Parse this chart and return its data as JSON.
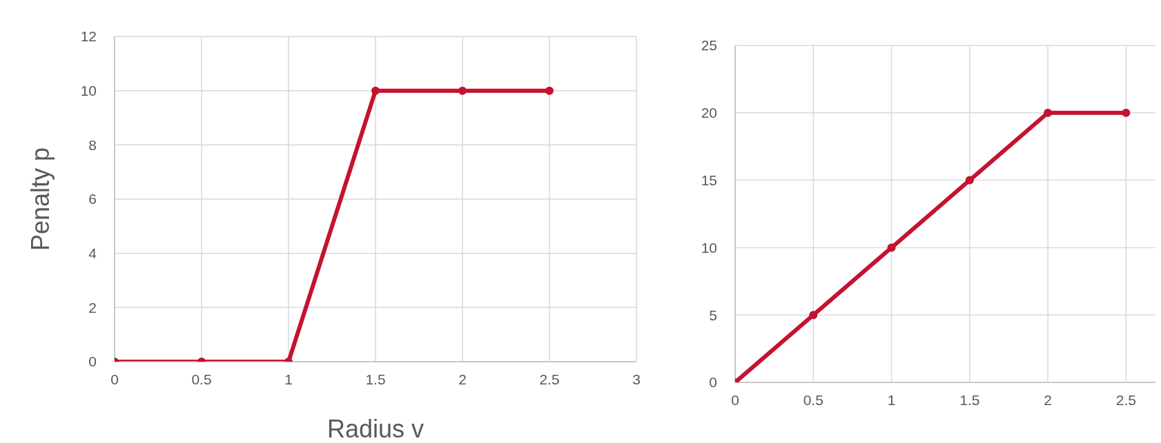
{
  "chart_data": [
    {
      "type": "line",
      "xlabel": "Radius v",
      "ylabel": "Penalty p",
      "x": [
        0,
        0.5,
        1,
        1.5,
        2,
        2.5
      ],
      "series": [
        {
          "color": "#c41230",
          "values": [
            0,
            0,
            0,
            10,
            10,
            10
          ]
        }
      ],
      "xlim": [
        0,
        3
      ],
      "xticks": [
        0,
        0.5,
        1,
        1.5,
        2,
        2.5,
        3
      ],
      "ylim": [
        0,
        12
      ],
      "yticks": [
        0,
        2,
        4,
        6,
        8,
        10,
        12
      ],
      "grid": true,
      "marker": "circle",
      "line_style": "solid"
    },
    {
      "type": "line",
      "x": [
        0,
        0.5,
        1,
        1.5,
        2,
        2.5
      ],
      "series": [
        {
          "color": "#c41230",
          "values": [
            0,
            5,
            10,
            15,
            20,
            20
          ]
        }
      ],
      "xlim": [
        0,
        2.75
      ],
      "xticks": [
        0,
        0.5,
        1,
        1.5,
        2,
        2.5
      ],
      "ylim": [
        0,
        25
      ],
      "yticks": [
        0,
        5,
        10,
        15,
        20,
        25
      ],
      "grid": true,
      "marker": "circle",
      "line_style": "solid"
    }
  ]
}
